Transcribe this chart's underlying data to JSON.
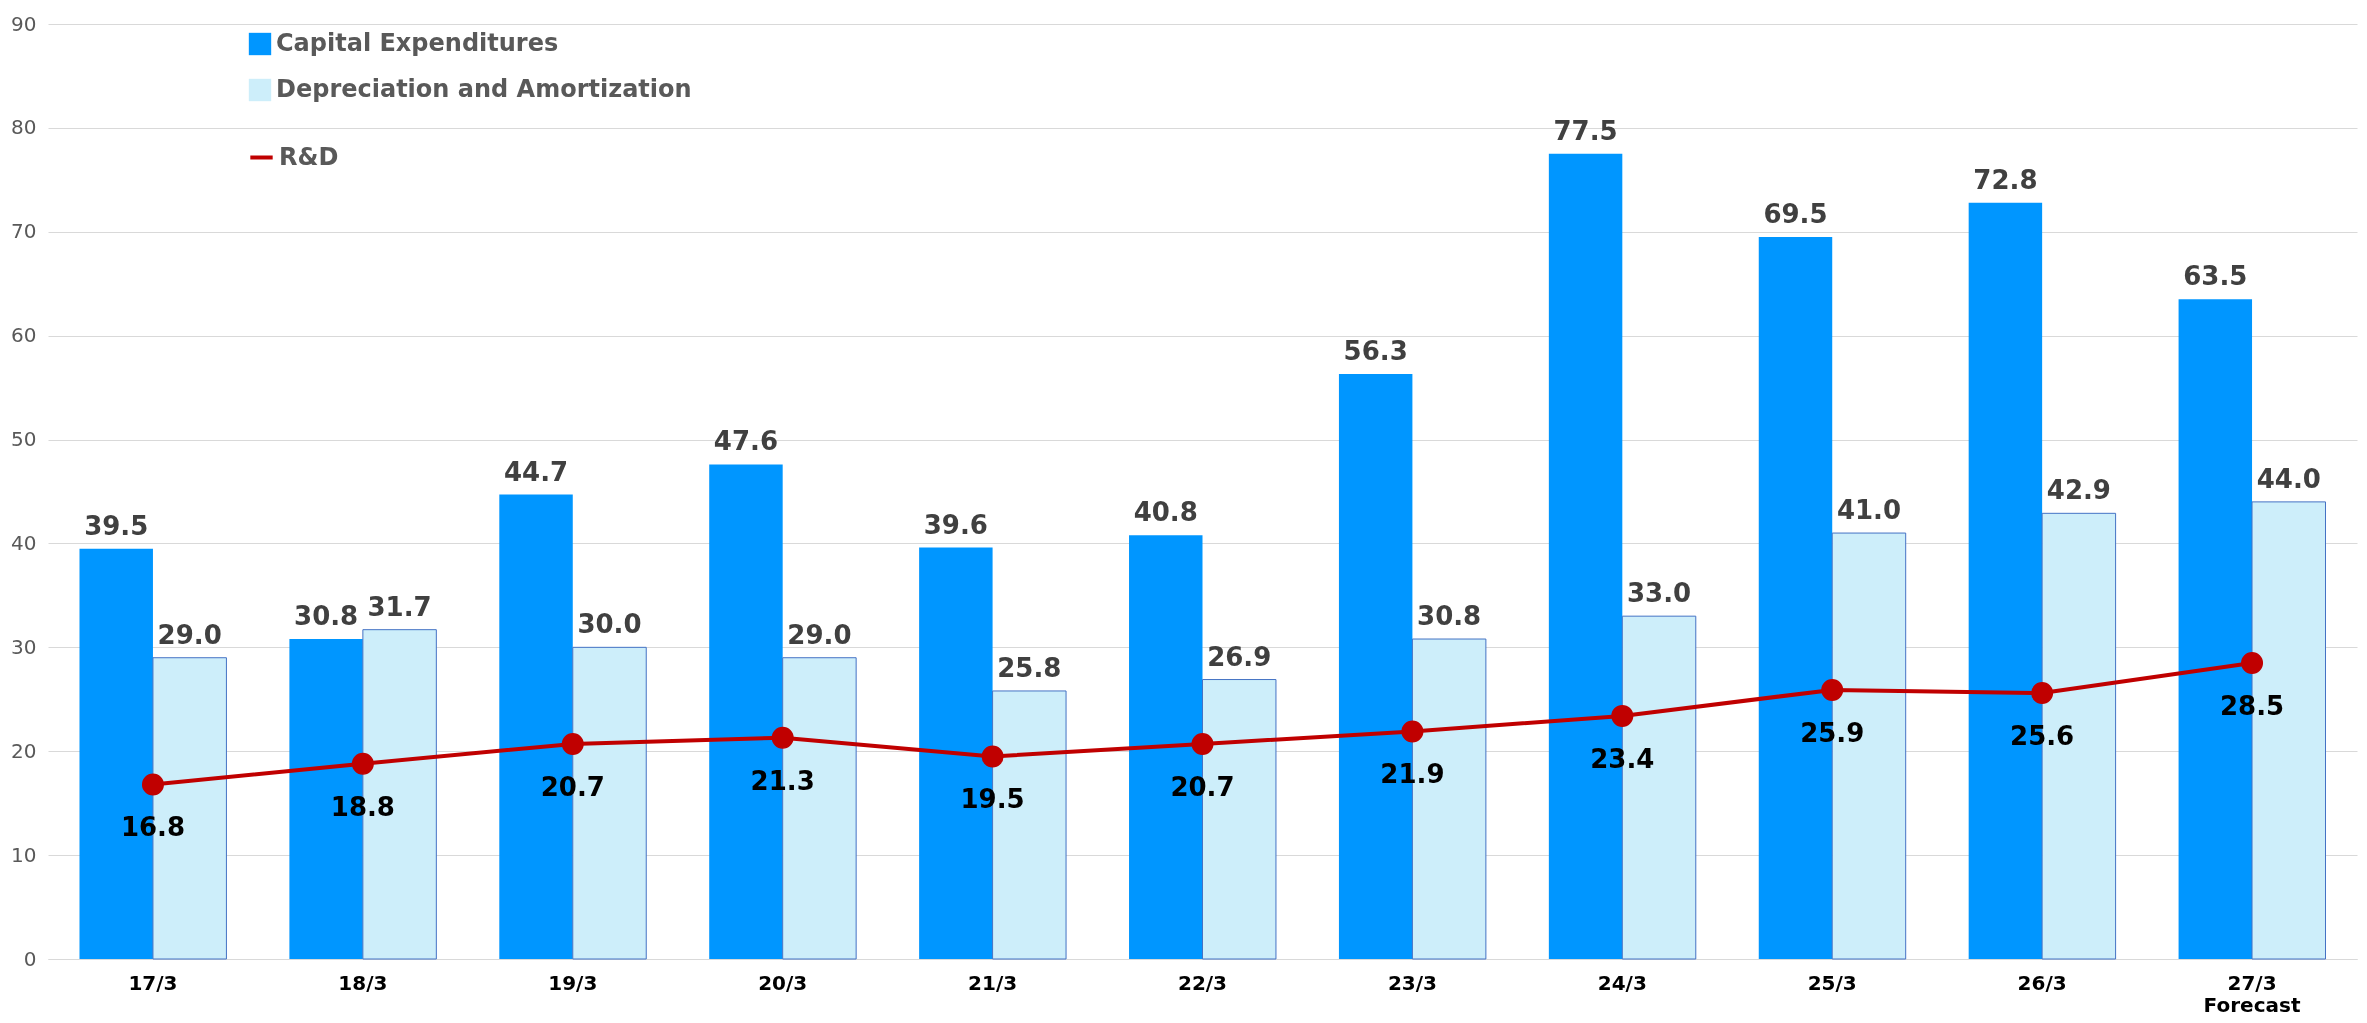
{
  "chart_data": {
    "type": "bar",
    "categories": [
      "17/3",
      "18/3",
      "19/3",
      "20/3",
      "21/3",
      "22/3",
      "23/3",
      "24/3",
      "25/3",
      "26/3",
      "27/3\nForecast"
    ],
    "series": [
      {
        "name": "Capital Expenditures",
        "color": "#0096ff",
        "values": [
          39.5,
          30.8,
          44.7,
          47.6,
          39.6,
          40.8,
          56.3,
          77.5,
          69.5,
          72.8,
          63.5
        ],
        "value_labels": [
          "39.5",
          "30.8",
          "44.7",
          "47.6",
          "39.6",
          "40.8",
          "56.3",
          "77.5",
          "69.5",
          "72.8",
          "63.5"
        ]
      },
      {
        "name": "Depreciation and Amortization",
        "color": "#cdeefa",
        "values": [
          29.0,
          31.7,
          30.0,
          29.0,
          25.8,
          26.9,
          30.8,
          33.0,
          41.0,
          42.9,
          44.0
        ],
        "value_labels": [
          "29.0",
          "31.7",
          "30.0",
          "29.0",
          "25.8",
          "26.9",
          "30.8",
          "33.0",
          "41.0",
          "42.9",
          "44.0"
        ]
      },
      {
        "name": "R&D",
        "type": "line",
        "color": "#c00000",
        "marker": "circle",
        "values": [
          16.8,
          18.8,
          20.7,
          21.3,
          19.5,
          20.7,
          21.9,
          23.4,
          25.9,
          25.6,
          28.5
        ],
        "value_labels": [
          "16.8",
          "18.8",
          "20.7",
          "21.3",
          "19.5",
          "20.7",
          "21.9",
          "23.4",
          "25.9",
          "25.6",
          "28.5"
        ]
      }
    ],
    "ylim": [
      0,
      90
    ],
    "yticks": [
      0,
      10,
      20,
      30,
      40,
      50,
      60,
      70,
      80,
      90
    ],
    "grid": "y",
    "legend": "top left"
  }
}
